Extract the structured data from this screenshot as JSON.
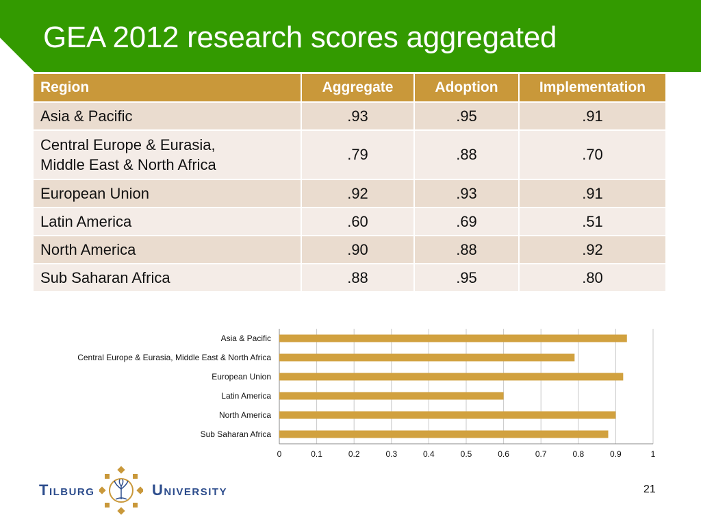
{
  "slide": {
    "title": "GEA 2012 research scores aggregated",
    "page_number": "21"
  },
  "colors": {
    "banner_green": "#339a00",
    "header_gold": "#c9983a",
    "row_odd": "#eadccf",
    "row_even": "#f4ece7",
    "bar_gold": "#d1a13f",
    "logo_blue": "#2c4c8c"
  },
  "table": {
    "headers": [
      "Region",
      "Aggregate",
      "Adoption",
      "Implementation"
    ],
    "rows": [
      {
        "region": "Asia & Pacific",
        "region_line2": "",
        "aggregate": ".93",
        "adoption": ".95",
        "implementation": ".91"
      },
      {
        "region": "Central Europe & Eurasia,",
        "region_line2": "Middle East & North Africa",
        "aggregate": ".79",
        "adoption": ".88",
        "implementation": ".70"
      },
      {
        "region": "European Union",
        "region_line2": "",
        "aggregate": ".92",
        "adoption": ".93",
        "implementation": ".91"
      },
      {
        "region": "Latin America",
        "region_line2": "",
        "aggregate": ".60",
        "adoption": ".69",
        "implementation": ".51"
      },
      {
        "region": "North America",
        "region_line2": "",
        "aggregate": ".90",
        "adoption": ".88",
        "implementation": ".92"
      },
      {
        "region": "Sub Saharan Africa",
        "region_line2": "",
        "aggregate": ".88",
        "adoption": ".95",
        "implementation": ".80"
      }
    ]
  },
  "chart_data": {
    "type": "bar",
    "orientation": "horizontal",
    "categories": [
      "Asia & Pacific",
      "Central Europe & Eurasia, Middle East & North Africa",
      "European Union",
      "Latin America",
      "North America",
      "Sub Saharan Africa"
    ],
    "values": [
      0.93,
      0.79,
      0.92,
      0.6,
      0.9,
      0.88
    ],
    "xlim": [
      0,
      1
    ],
    "x_ticks": [
      "0",
      "0.1",
      "0.2",
      "0.3",
      "0.4",
      "0.5",
      "0.6",
      "0.7",
      "0.8",
      "0.9",
      "1"
    ],
    "grid": true,
    "legend": "none"
  },
  "footer": {
    "logo_left": "Tilburg",
    "logo_right": "University",
    "logo_icon": "tilburg-tree-crest-icon"
  }
}
